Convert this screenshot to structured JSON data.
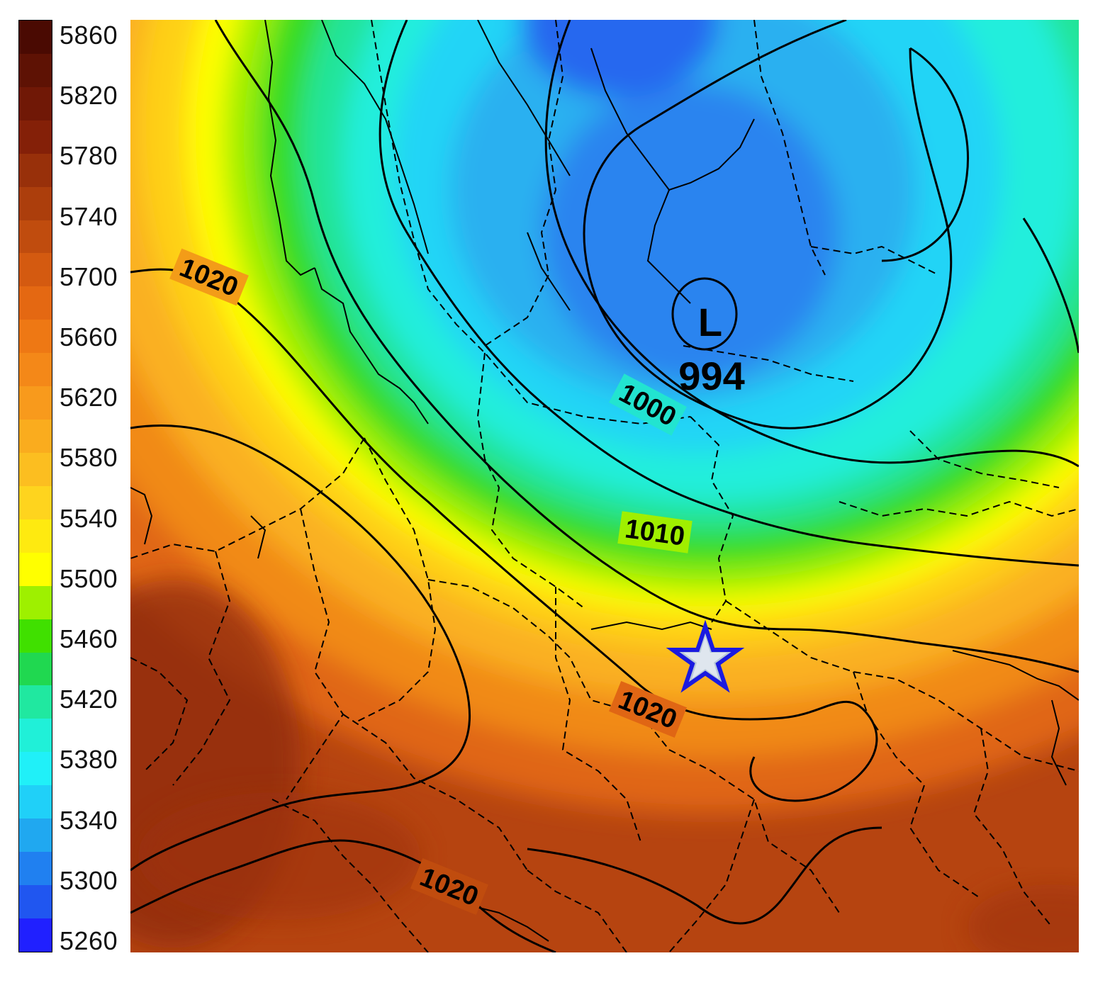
{
  "colorbar": {
    "tick_labels": [
      "5860",
      "5820",
      "5780",
      "5740",
      "5700",
      "5660",
      "5620",
      "5580",
      "5540",
      "5500",
      "5460",
      "5420",
      "5380",
      "5340",
      "5300",
      "5260"
    ],
    "colors_top_to_bottom": [
      "#4a0a02",
      "#5e1204",
      "#701806",
      "#842008",
      "#98300a",
      "#ac3e0c",
      "#c04c0e",
      "#d45a10",
      "#e46812",
      "#ee7814",
      "#f48818",
      "#f89a1c",
      "#faac1e",
      "#fcbe20",
      "#fed41e",
      "#feea10",
      "#ffff00",
      "#9ef000",
      "#40e000",
      "#20d850",
      "#20e8a0",
      "#20f0d8",
      "#20f0f8",
      "#20d0f8",
      "#20a8f0",
      "#2080f0",
      "#2056f0",
      "#2020ff"
    ]
  },
  "map": {
    "isobar_labels": [
      "1020",
      "1020",
      "1020",
      "1010",
      "1000",
      "994"
    ],
    "low_marker": "L",
    "star_marker": "star-icon"
  }
}
